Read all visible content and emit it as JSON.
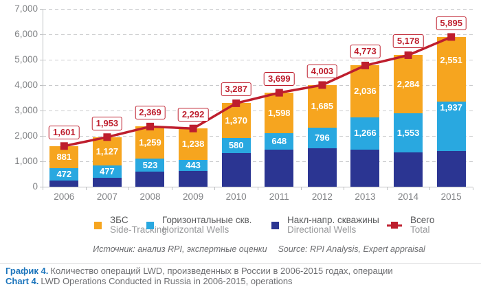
{
  "colors": {
    "side_tracking": "#F6A51F",
    "horizontal_wells": "#29A8E0",
    "directional_wells": "#2B3592",
    "total_line": "#BE1E2D",
    "gridline": "#C9CACC",
    "axis": "#BDBFC1",
    "tick_text": "#808285",
    "caption_accent": "#1C75BC",
    "caption_text": "#6D6E71",
    "source_text": "#6D6E71"
  },
  "chart_data": {
    "type": "bar",
    "subtype": "stacked-bars-with-total-line",
    "categories": [
      "2006",
      "2007",
      "2008",
      "2009",
      "2010",
      "2011",
      "2012",
      "2013",
      "2014",
      "2015"
    ],
    "series": [
      {
        "name_ru": "Накл-напр. скважины",
        "name_en": "Directional Wells",
        "role": "directional_wells",
        "color": "#2B3592",
        "labels_shown": false,
        "values": [
          248,
          349,
          587,
          611,
          1337,
          1453,
          1522,
          1471,
          1341,
          1407
        ]
      },
      {
        "name_ru": "Горизонтальные скв.",
        "name_en": "Horizontal Wells",
        "role": "horizontal_wells",
        "color": "#29A8E0",
        "labels_shown": true,
        "values": [
          472,
          477,
          523,
          443,
          580,
          648,
          796,
          1266,
          1553,
          1937
        ]
      },
      {
        "name_ru": "ЗБС",
        "name_en": "Side-Tracking",
        "role": "side_tracking",
        "color": "#F6A51F",
        "labels_shown": true,
        "values": [
          881,
          1127,
          1259,
          1238,
          1370,
          1598,
          1685,
          2036,
          2284,
          2551
        ]
      }
    ],
    "total_line": {
      "name_ru": "Всего",
      "name_en": "Total",
      "color": "#BE1E2D",
      "values": [
        1601,
        1953,
        2369,
        2292,
        3287,
        3699,
        4003,
        4773,
        5178,
        5895
      ]
    },
    "ylim": [
      0,
      7000
    ],
    "ytick_step": 1000,
    "grid": "horizontal-dashed",
    "legend_position": "bottom"
  },
  "legend": {
    "items": [
      {
        "ru": "ЗБС",
        "en": "Side-Tracking"
      },
      {
        "ru": "Горизонтальные скв.",
        "en": "Horizontal Wells"
      },
      {
        "ru": "Накл-напр. скважины",
        "en": "Directional Wells"
      },
      {
        "ru": "Всего",
        "en": "Total"
      }
    ]
  },
  "source": {
    "ru": "Источник: анализ RPI, экспертные оценки",
    "en": "Source: RPI Analysis, Expert appraisal"
  },
  "caption": {
    "line1_label": "График 4.",
    "line1_text": "Количество операций LWD, произведенных в России в 2006-2015 годах, операции",
    "line2_label": "Chart 4.",
    "line2_text": "LWD Operations Conducted in Russia in 2006-2015, operations"
  }
}
